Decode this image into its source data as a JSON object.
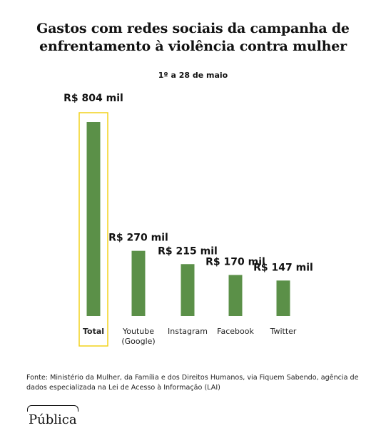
{
  "chart_data": {
    "type": "bar",
    "title": "Gastos com redes sociais da campanha de enfrentamento à violência contra mulher",
    "subtitle": "1º a 28 de maio",
    "categories": [
      "Total",
      "Youtube (Google)",
      "Instagram",
      "Facebook",
      "Twitter"
    ],
    "category_lines": [
      [
        "Total"
      ],
      [
        "Youtube",
        "(Google)"
      ],
      [
        "Instagram"
      ],
      [
        "Facebook"
      ],
      [
        "Twitter"
      ]
    ],
    "values": [
      804,
      270,
      215,
      170,
      147
    ],
    "value_labels": [
      "R$ 804 mil",
      "R$ 270 mil",
      "R$ 215 mil",
      "R$ 170 mil",
      "R$ 147 mil"
    ],
    "unit": "mil R$",
    "highlight": "Total",
    "bar_color": "#5b9048",
    "highlight_border_color": "#f2d21b",
    "ylim": [
      0,
      804
    ]
  },
  "source": "Fonte: Ministério da Mulher, da Família e dos Direitos Humanos, via Fiquem Sabendo, agência de dados especializada na Lei de Acesso à Informação (LAI)",
  "logo": "Pública"
}
